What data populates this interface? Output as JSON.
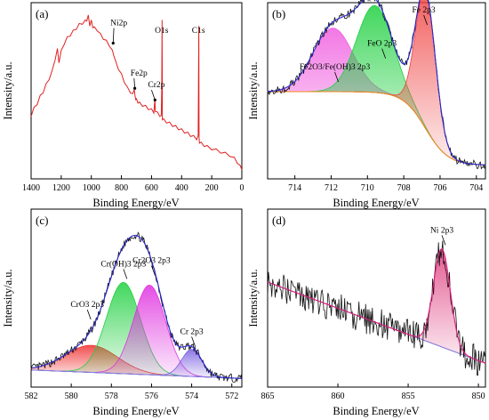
{
  "figure": {
    "colors": {
      "spectrum_a": "#e02020",
      "raw_data": "#111111",
      "envelope": "#2a2ad0",
      "background": "#8080e0",
      "shirley": "#f08a20"
    }
  },
  "chart_data": [
    {
      "type": "line",
      "panel": "(a)",
      "xlabel": "Binding Energy/eV",
      "ylabel": "Intensity/a.u.",
      "xlim": [
        1400,
        0
      ],
      "reversed_x": true,
      "xticks": [
        1400,
        1200,
        1000,
        800,
        600,
        400,
        200,
        0
      ],
      "ylim": [
        0,
        100
      ],
      "annotations": [
        {
          "text": "Ni2p",
          "x": 855,
          "y": 79,
          "ax": 850,
          "ay": 88
        },
        {
          "text": "Fe2p",
          "x": 711,
          "y": 52,
          "ax": 716,
          "ay": 58
        },
        {
          "text": "Cr2p",
          "x": 577,
          "y": 45,
          "ax": 600,
          "ay": 51
        },
        {
          "text": "O1s",
          "x": 531,
          "y": 84,
          "ax": 546,
          "ay": 84
        },
        {
          "text": "C1s",
          "x": 285,
          "y": 84,
          "ax": 290,
          "ay": 84
        }
      ],
      "series": [
        {
          "x": [
            1400,
            1380,
            1360,
            1340,
            1320,
            1300,
            1280,
            1260,
            1240,
            1225,
            1215,
            1200,
            1180,
            1160,
            1140,
            1120,
            1100,
            1080,
            1060,
            1040,
            1030,
            1020,
            1010,
            1000,
            990,
            980,
            960,
            940,
            920,
            900,
            880,
            860,
            850,
            840,
            820,
            800,
            780,
            760,
            740,
            725,
            715,
            710,
            705,
            700,
            690,
            680,
            660,
            640,
            620,
            600,
            585,
            578,
            575,
            560,
            545,
            535,
            532,
            530,
            528,
            520,
            500,
            480,
            460,
            440,
            420,
            400,
            380,
            360,
            340,
            320,
            300,
            290,
            286,
            284,
            282,
            270,
            250,
            230,
            200,
            170,
            140,
            110,
            80,
            50,
            30,
            10,
            0
          ],
          "values": [
            36,
            40,
            43,
            47,
            50,
            54,
            58,
            62,
            70,
            75,
            68,
            74,
            79,
            82,
            84,
            86,
            88,
            90,
            91,
            92,
            93,
            95,
            90,
            92,
            89,
            88,
            87,
            84,
            82,
            80,
            78,
            74,
            72,
            68,
            64,
            60,
            56,
            52,
            50,
            48,
            52,
            47,
            46,
            45,
            44,
            43,
            42,
            41,
            40,
            39,
            38,
            45,
            39,
            37,
            36,
            35,
            52,
            92,
            34,
            33,
            32,
            31,
            30,
            29,
            28,
            27,
            26,
            25,
            24,
            23,
            22,
            23,
            90,
            22,
            20,
            19,
            18,
            17,
            16,
            15,
            14,
            13,
            12,
            10,
            8,
            5,
            4
          ]
        }
      ]
    },
    {
      "type": "line",
      "panel": "(b)",
      "xlabel": "Binding Energy/eV",
      "ylabel": "Intensity/a.u.",
      "xlim": [
        715.5,
        703.5
      ],
      "reversed_x": true,
      "xticks": [
        714,
        712,
        710,
        708,
        706,
        704
      ],
      "ylim": [
        0,
        100
      ],
      "annotations": [
        {
          "text": "Fe2O3/Fe(OH)3 2p3",
          "x": 711.8,
          "y": 58
        },
        {
          "text": "FeO 2p3",
          "x": 709.2,
          "y": 72
        },
        {
          "text": "Fe 2p3",
          "x": 706.9,
          "y": 92
        }
      ],
      "peaks": [
        {
          "name": "Fe2O3/Fe(OH)3 2p3",
          "center": 711.9,
          "height": 38,
          "sigma": 1.1,
          "color": "#f060e0"
        },
        {
          "name": "FeO 2p3",
          "center": 709.6,
          "height": 52,
          "sigma": 1.0,
          "color": "#20d040"
        },
        {
          "name": "Fe 2p3",
          "center": 706.8,
          "height": 82,
          "sigma": 0.55,
          "color": "#f04040"
        }
      ],
      "background": {
        "type": "shirley",
        "left": 50,
        "right": 6
      }
    },
    {
      "type": "line",
      "panel": "(c)",
      "xlabel": "Binding Energy/eV",
      "ylabel": "Intensity/a.u.",
      "xlim": [
        582,
        571.5
      ],
      "reversed_x": true,
      "xticks": [
        582,
        580,
        578,
        576,
        574,
        572
      ],
      "ylim": [
        0,
        100
      ],
      "annotations": [
        {
          "text": "CrO3 2p3",
          "x": 579.2,
          "y": 40
        },
        {
          "text": "Cr(OH)3 2p3",
          "x": 577.4,
          "y": 64
        },
        {
          "text": "Cr2O3 2p3",
          "x": 576.0,
          "y": 66
        },
        {
          "text": "Cr 2p3",
          "x": 574.0,
          "y": 24
        }
      ],
      "peaks": [
        {
          "name": "CrO3 2p3",
          "center": 579.0,
          "height": 16,
          "sigma": 1.3,
          "color": "#f03030"
        },
        {
          "name": "Cr(OH)3 2p3",
          "center": 577.4,
          "height": 54,
          "sigma": 0.85,
          "color": "#20d040"
        },
        {
          "name": "Cr2O3 2p3",
          "center": 576.1,
          "height": 53,
          "sigma": 0.8,
          "color": "#e030e0"
        },
        {
          "name": "Cr 2p3",
          "center": 574.0,
          "height": 16,
          "sigma": 0.5,
          "color": "#7a60e0"
        }
      ],
      "background": {
        "type": "linear",
        "left": 8,
        "right": 3
      }
    },
    {
      "type": "line",
      "panel": "(d)",
      "xlabel": "Binding Energy/eV",
      "ylabel": "Intensity/a.u.",
      "xlim": [
        865,
        849.5
      ],
      "reversed_x": true,
      "xticks": [
        865,
        860,
        855,
        850
      ],
      "ylim": [
        0,
        100
      ],
      "annotations": [
        {
          "text": "Ni 2p3",
          "x": 852.6,
          "y": 84
        }
      ],
      "peaks": [
        {
          "name": "Ni 2p3",
          "center": 852.6,
          "height": 58,
          "sigma": 0.6,
          "color": "#e04080"
        }
      ],
      "background": {
        "type": "linear",
        "left": 60,
        "right": 12
      }
    }
  ]
}
